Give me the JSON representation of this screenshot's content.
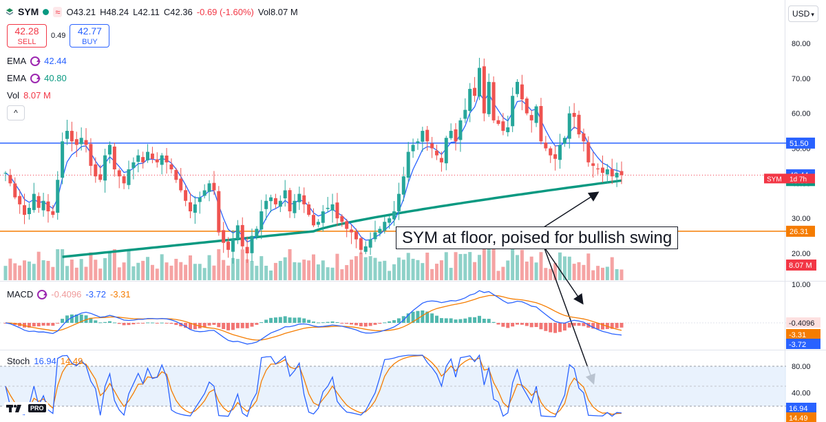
{
  "header": {
    "symbol": "SYM",
    "open": "O43.21",
    "high": "H48.24",
    "low": "L42.11",
    "close": "C42.36",
    "change": "-0.69 (-1.60%)",
    "volume": "Vol8.07 M",
    "badge": "≈"
  },
  "trade": {
    "sell_price": "42.28",
    "sell_label": "SELL",
    "spread": "0.49",
    "buy_price": "42.77",
    "buy_label": "BUY"
  },
  "indicators": {
    "ema_fast": {
      "name": "EMA",
      "value": "42.44",
      "color": "#2962ff"
    },
    "ema_slow": {
      "name": "EMA",
      "value": "40.80",
      "color": "#089981"
    },
    "vol": {
      "name": "Vol",
      "value": "8.07 M",
      "color": "#f23645"
    }
  },
  "currency": "USD",
  "annotation": "SYM at floor, poised for bullish swing",
  "colors": {
    "up": "#26a69a",
    "down": "#ef5350",
    "blue": "#2962ff",
    "green": "#089981",
    "orange": "#f57c00",
    "purple": "#9c27b0"
  },
  "chart_data": [
    {
      "type": "candlestick",
      "title": "SYM 1d",
      "ylim": [
        12,
        93
      ],
      "y_ticks": [
        20,
        30,
        40,
        50,
        60,
        70,
        80
      ],
      "grid": false,
      "horizontal_lines": [
        {
          "value": 51.5,
          "label": "51.50",
          "color": "#2962ff"
        },
        {
          "value": 26.31,
          "label": "26.31",
          "color": "#f57c00"
        }
      ],
      "price_labels": [
        {
          "value": 42.44,
          "label": "42.44",
          "color": "#2962ff"
        },
        {
          "value": 42.36,
          "label": "SYM",
          "secondary": "1d 7h",
          "color": "#f23645"
        },
        {
          "value": 40.8,
          "label": "40.80",
          "color": "#089981"
        },
        {
          "value": 17.3,
          "label": "8.07 M",
          "color": "#f23645"
        }
      ],
      "closes": [
        43,
        40,
        36,
        34,
        31,
        33,
        37,
        33,
        35,
        32,
        31,
        41,
        52,
        55,
        52,
        51,
        53,
        51,
        45,
        42,
        41,
        48,
        51,
        44,
        42,
        40,
        44,
        46,
        48,
        46,
        49,
        47,
        46,
        48,
        46,
        44,
        41,
        38,
        35,
        32,
        34,
        36,
        38,
        40,
        38,
        26,
        23,
        21,
        24,
        28,
        22,
        20,
        25,
        27,
        32,
        35,
        36,
        34,
        35,
        38,
        32,
        35,
        37,
        34,
        31,
        28,
        29,
        32,
        33,
        34,
        30,
        29,
        27,
        26,
        24,
        21,
        22,
        24,
        26,
        27,
        29,
        30,
        32,
        37,
        42,
        49,
        51,
        52,
        55,
        52,
        50,
        48,
        46,
        53,
        55,
        52,
        58,
        61,
        67,
        65,
        73,
        60,
        69,
        58,
        57,
        55,
        56,
        65,
        69,
        64,
        60,
        58,
        62,
        52,
        50,
        48,
        47,
        51,
        53,
        60,
        59,
        54,
        52,
        46,
        45,
        44,
        43,
        44,
        42,
        43,
        42.36
      ],
      "ema_fast": [
        42.44
      ],
      "ema_slow": [
        40.8
      ],
      "volume": {
        "last": 8.07,
        "unit": "M"
      }
    },
    {
      "type": "line",
      "title": "MACD",
      "series": [
        {
          "name": "MACD",
          "color": "#2962ff",
          "last": -3.72
        },
        {
          "name": "Signal",
          "color": "#f57c00",
          "last": -3.31
        },
        {
          "name": "Histogram",
          "color": "#ef9a9a",
          "last": -0.4096
        }
      ],
      "legend_values": [
        "-0.4096",
        "-3.72",
        "-3.31"
      ],
      "y_ticks": [
        10
      ],
      "axis_labels": [
        "-0.4096",
        "-3.31",
        "-3.72"
      ]
    },
    {
      "type": "line",
      "title": "Stoch",
      "series": [
        {
          "name": "%K",
          "color": "#2962ff",
          "last": 16.94
        },
        {
          "name": "%D",
          "color": "#f57c00",
          "last": 14.49
        }
      ],
      "legend_values": [
        "16.94",
        "14.49"
      ],
      "ylim": [
        0,
        100
      ],
      "bands": [
        20,
        80
      ],
      "y_ticks": [
        40,
        80
      ],
      "axis_labels": [
        "16.94",
        "14.49"
      ]
    }
  ]
}
